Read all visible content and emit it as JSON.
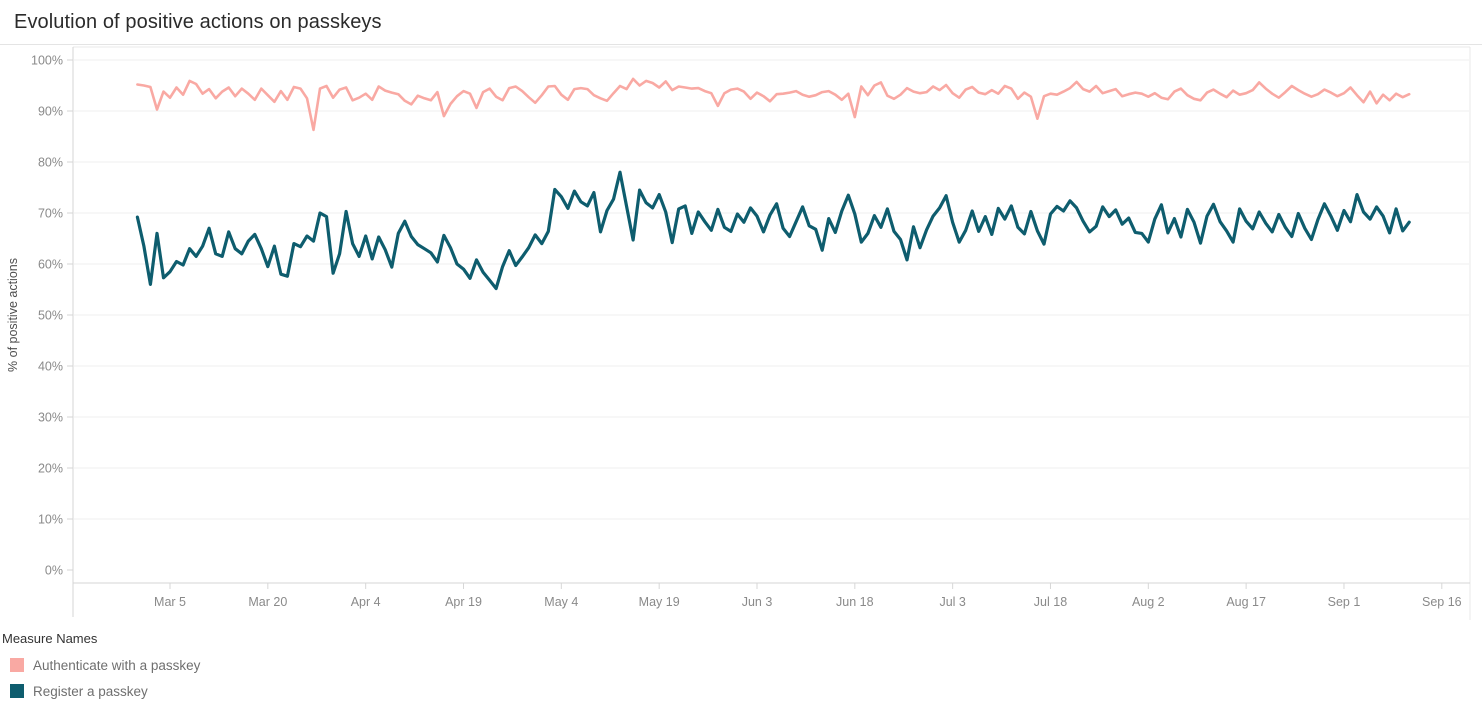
{
  "title": "Evolution of positive actions on passkeys",
  "legend": {
    "title": "Measure Names",
    "items": [
      {
        "label": "Authenticate with a passkey",
        "color": "#F9A9A3"
      },
      {
        "label": "Register a passkey",
        "color": "#0E5D6E"
      }
    ]
  },
  "chart_data": {
    "type": "line",
    "title": "Evolution of positive actions on passkeys",
    "xlabel": "",
    "ylabel": "% of positive actions",
    "ylim": [
      0,
      100
    ],
    "grid": "horizontal-only",
    "legend_position": "bottom-left",
    "x_frequency": "daily",
    "start_date": "Feb 28",
    "end_date": "Sep 11",
    "y_ticks": [
      "0%",
      "10%",
      "20%",
      "30%",
      "40%",
      "50%",
      "60%",
      "70%",
      "80%",
      "90%",
      "100%"
    ],
    "x_ticks": [
      {
        "label": "Mar 5",
        "day": 5
      },
      {
        "label": "Mar 20",
        "day": 20
      },
      {
        "label": "Apr 4",
        "day": 35
      },
      {
        "label": "Apr 19",
        "day": 50
      },
      {
        "label": "May 4",
        "day": 65
      },
      {
        "label": "May 19",
        "day": 80
      },
      {
        "label": "Jun 3",
        "day": 95
      },
      {
        "label": "Jun 18",
        "day": 110
      },
      {
        "label": "Jul 3",
        "day": 125
      },
      {
        "label": "Jul 18",
        "day": 140
      },
      {
        "label": "Aug 2",
        "day": 155
      },
      {
        "label": "Aug 17",
        "day": 170
      },
      {
        "label": "Sep 1",
        "day": 185
      },
      {
        "label": "Sep 16",
        "day": 200
      }
    ],
    "series": [
      {
        "name": "Authenticate with a passkey",
        "color": "#F9A9A3",
        "unit": "%",
        "values": [
          95.2,
          95.0,
          94.7,
          90.3,
          93.8,
          92.6,
          94.6,
          93.2,
          95.9,
          95.3,
          93.4,
          94.3,
          92.5,
          93.8,
          94.6,
          92.9,
          94.4,
          93.4,
          92.2,
          94.4,
          93.1,
          91.8,
          93.9,
          92.2,
          94.7,
          94.4,
          92.5,
          86.3,
          94.4,
          94.9,
          92.6,
          94.2,
          94.6,
          92.1,
          92.6,
          93.4,
          92.2,
          94.8,
          94.0,
          93.6,
          93.3,
          92.0,
          91.3,
          93.0,
          92.5,
          92.1,
          93.7,
          89.0,
          91.4,
          92.9,
          93.9,
          93.4,
          90.6,
          93.7,
          94.4,
          92.8,
          92.1,
          94.5,
          94.8,
          93.9,
          92.7,
          91.6,
          93.1,
          94.8,
          94.9,
          93.2,
          92.2,
          94.3,
          94.5,
          94.3,
          93.1,
          92.5,
          92.0,
          93.5,
          94.9,
          94.3,
          96.3,
          95.0,
          95.9,
          95.5,
          94.6,
          95.8,
          94.1,
          94.8,
          94.6,
          94.4,
          94.5,
          93.9,
          93.5,
          91.0,
          93.5,
          94.2,
          94.4,
          93.8,
          92.4,
          93.6,
          92.9,
          91.9,
          93.3,
          93.4,
          93.6,
          93.9,
          93.2,
          92.8,
          93.1,
          93.7,
          93.9,
          93.2,
          92.2,
          93.4,
          88.8,
          94.8,
          93.1,
          95.0,
          95.6,
          93.0,
          92.4,
          93.2,
          94.5,
          93.8,
          93.5,
          93.7,
          94.8,
          94.1,
          95.1,
          93.5,
          92.6,
          94.2,
          94.7,
          93.6,
          93.3,
          94.1,
          93.4,
          94.9,
          94.4,
          92.4,
          93.6,
          92.8,
          88.5,
          92.9,
          93.4,
          93.2,
          93.8,
          94.5,
          95.7,
          94.3,
          93.8,
          94.9,
          93.5,
          93.9,
          94.3,
          92.9,
          93.3,
          93.6,
          93.4,
          92.8,
          93.5,
          92.6,
          92.3,
          93.8,
          94.4,
          93.1,
          92.4,
          92.1,
          93.6,
          94.2,
          93.4,
          92.7,
          94.0,
          93.2,
          93.5,
          94.1,
          95.6,
          94.4,
          93.4,
          92.6,
          93.7,
          94.9,
          94.1,
          93.4,
          92.8,
          93.3,
          94.2,
          93.6,
          92.9,
          93.5,
          94.6,
          93.1,
          91.7,
          93.8,
          91.5,
          93.2,
          92.1,
          93.4,
          92.7,
          93.3
        ]
      },
      {
        "name": "Register a passkey",
        "color": "#0E5D6E",
        "unit": "%",
        "values": [
          69.2,
          63.5,
          56.0,
          66.0,
          57.3,
          58.5,
          60.5,
          59.8,
          63.0,
          61.5,
          63.5,
          67.0,
          62.0,
          61.5,
          66.3,
          63.0,
          62.0,
          64.5,
          65.8,
          63.0,
          59.5,
          63.5,
          58.0,
          57.6,
          64.0,
          63.4,
          65.5,
          64.5,
          70.0,
          69.3,
          58.2,
          62.0,
          70.3,
          64.0,
          61.5,
          65.5,
          61.0,
          65.3,
          62.8,
          59.4,
          66.0,
          68.4,
          65.4,
          63.8,
          63.0,
          62.2,
          60.4,
          65.6,
          63.2,
          60.0,
          59.0,
          57.2,
          60.8,
          58.4,
          56.8,
          55.2,
          59.5,
          62.6,
          59.7,
          61.4,
          63.2,
          65.7,
          64.0,
          66.4,
          74.6,
          73.2,
          70.9,
          74.3,
          72.2,
          71.4,
          74.0,
          66.3,
          70.5,
          72.7,
          78.0,
          71.3,
          64.7,
          74.5,
          72.0,
          71.0,
          73.6,
          70.2,
          64.2,
          70.8,
          71.4,
          66.0,
          70.2,
          68.3,
          66.6,
          70.7,
          67.2,
          66.4,
          69.8,
          68.2,
          71.0,
          69.4,
          66.3,
          69.6,
          71.8,
          67.0,
          65.4,
          68.3,
          71.2,
          67.5,
          66.8,
          62.7,
          68.9,
          66.2,
          70.4,
          73.5,
          69.8,
          64.3,
          66.0,
          69.5,
          67.2,
          70.8,
          66.4,
          64.8,
          60.8,
          67.3,
          63.2,
          66.7,
          69.4,
          71.0,
          73.4,
          68.2,
          64.3,
          66.6,
          70.4,
          66.4,
          69.3,
          65.8,
          70.9,
          68.8,
          71.4,
          67.2,
          65.9,
          70.3,
          66.5,
          63.9,
          69.8,
          71.3,
          70.4,
          72.4,
          71.0,
          68.4,
          66.3,
          67.4,
          71.2,
          69.3,
          70.6,
          67.8,
          69.0,
          66.2,
          66.0,
          64.3,
          68.8,
          71.6,
          66.1,
          68.9,
          65.3,
          70.7,
          68.2,
          64.1,
          69.4,
          71.7,
          68.3,
          66.5,
          64.3,
          70.8,
          68.4,
          66.9,
          70.2,
          68.0,
          66.3,
          69.7,
          67.2,
          65.4,
          69.9,
          67.0,
          64.8,
          68.7,
          71.8,
          69.4,
          66.6,
          70.5,
          68.3,
          73.6,
          70.2,
          68.8,
          71.2,
          69.4,
          66.1,
          70.8,
          66.5,
          68.2
        ]
      }
    ]
  }
}
